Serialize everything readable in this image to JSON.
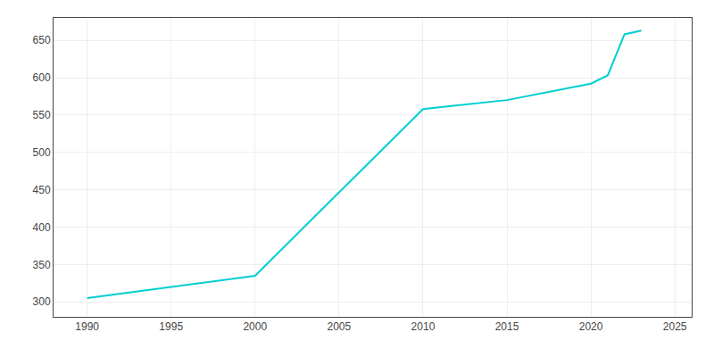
{
  "chart_data": {
    "type": "line",
    "x": [
      1990,
      1995,
      2000,
      2010,
      2015,
      2020,
      2021,
      2022,
      2023
    ],
    "values": [
      305,
      320,
      335,
      558,
      570,
      592,
      603,
      658,
      663
    ],
    "color": "#00CED1",
    "xlim": [
      1988,
      2026
    ],
    "ylim": [
      280,
      680
    ],
    "xticks": [
      1990,
      1995,
      2000,
      2005,
      2010,
      2015,
      2020,
      2025
    ],
    "yticks": [
      300,
      350,
      400,
      450,
      500,
      550,
      600,
      650
    ],
    "grid": true
  }
}
